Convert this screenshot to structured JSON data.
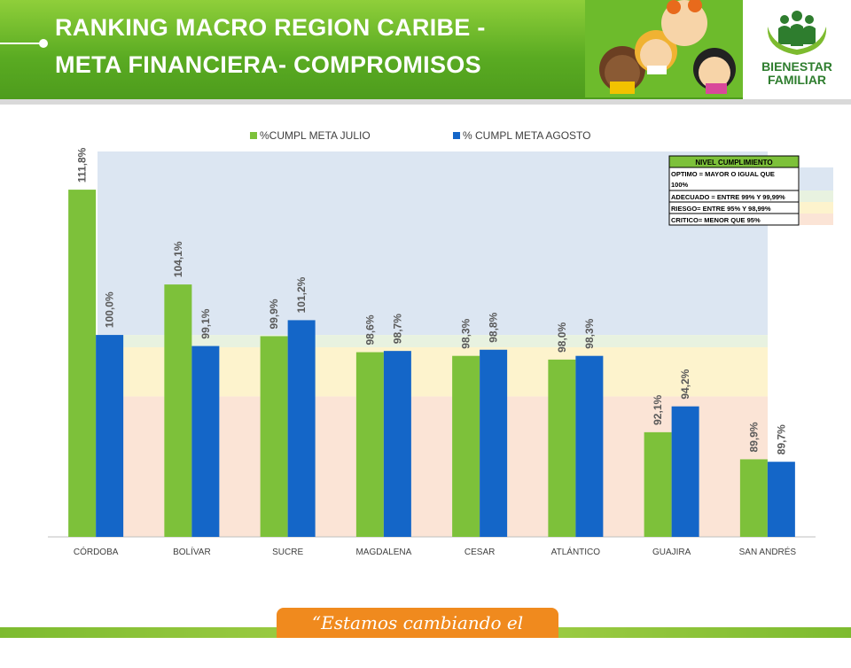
{
  "header": {
    "title_line1": "RANKING MACRO REGION CARIBE -",
    "title_line2": "META FINANCIERA- COMPROMISOS"
  },
  "logo": {
    "line1": "BIENESTAR",
    "line2": "FAMILIAR"
  },
  "footer": {
    "slogan": "“Estamos cambiando el mundo”"
  },
  "colors": {
    "julio": "#7dc13a",
    "agosto": "#1466c8",
    "optimo": "#dce6f2",
    "adecuado": "#e8f2e0",
    "riesgo": "#fdf3cd",
    "critico": "#fbe4d6"
  },
  "chart_data": {
    "type": "bar",
    "categories": [
      "CÓRDOBA",
      "BOLÍVAR",
      "SUCRE",
      "MAGDALENA",
      "CESAR",
      "ATLÁNTICO",
      "GUAJIRA",
      "SAN ANDRÉS"
    ],
    "series": [
      {
        "name": "%CUMPL META JULIO",
        "values": [
          111.8,
          104.1,
          99.9,
          98.6,
          98.3,
          98.0,
          92.1,
          89.9
        ],
        "labels": [
          "111,8%",
          "104,1%",
          "99,9%",
          "98,6%",
          "98,3%",
          "98,0%",
          "92,1%",
          "89,9%"
        ]
      },
      {
        "name": "% CUMPL META AGOSTO",
        "values": [
          100.0,
          99.1,
          101.2,
          98.7,
          98.8,
          98.3,
          94.2,
          89.7
        ],
        "labels": [
          "100,0%",
          "99,1%",
          "101,2%",
          "98,7%",
          "98,8%",
          "98,3%",
          "94,2%",
          "89,7%"
        ]
      }
    ],
    "ylim": [
      83.6,
      114.9
    ],
    "legend_position": "top",
    "bands": [
      {
        "key": "optimo",
        "from": 100,
        "to": 114.9
      },
      {
        "key": "adecuado",
        "from": 99,
        "to": 100
      },
      {
        "key": "riesgo",
        "from": 95,
        "to": 99
      },
      {
        "key": "critico",
        "from": 83.6,
        "to": 95
      }
    ],
    "band_legend": {
      "title": "NIVEL CUMPLIMIENTO",
      "rows": [
        {
          "key": "optimo",
          "lines": [
            "OPTIMO = MAYOR O IGUAL QUE",
            "100%"
          ]
        },
        {
          "key": "adecuado",
          "lines": [
            "ADECUADO = ENTRE 99% Y 99,99%"
          ]
        },
        {
          "key": "riesgo",
          "lines": [
            "RIESGO= ENTRE 95% Y 98,99%"
          ]
        },
        {
          "key": "critico",
          "lines": [
            "CRITICO= MENOR QUE 95%"
          ]
        }
      ]
    }
  }
}
